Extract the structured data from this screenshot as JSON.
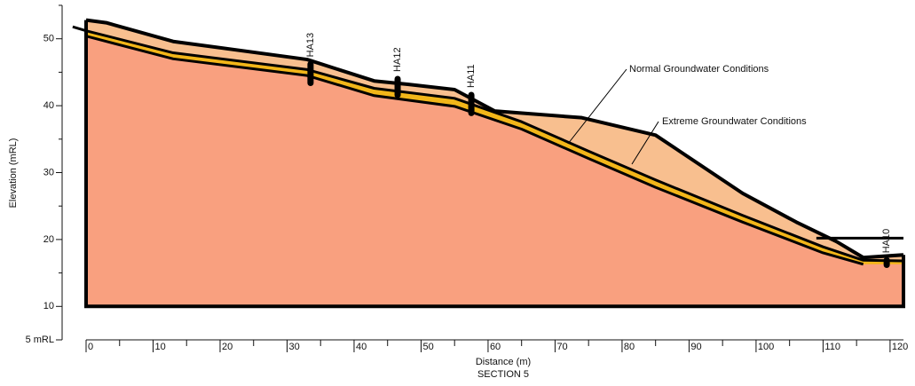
{
  "chart_data": {
    "type": "section",
    "subtitle": "SECTION 5",
    "x_label": "Distance (m)",
    "y_label": "Elevation (mRL)",
    "xlim": [
      0,
      122
    ],
    "ylim": [
      5,
      55
    ],
    "xticks": [
      0,
      10,
      20,
      30,
      40,
      50,
      60,
      70,
      80,
      90,
      100,
      110,
      120
    ],
    "yticks": [
      {
        "value": 5,
        "label": "5 mRL"
      },
      10,
      20,
      30,
      40,
      50
    ],
    "base": 10,
    "series": [
      {
        "color": "#000000",
        "x": [
          0,
          3,
          13,
          33,
          43,
          48,
          55,
          61,
          74,
          85,
          98,
          106,
          112,
          116,
          122
        ],
        "values": [
          52.8,
          52.4,
          49.6,
          46.9,
          43.7,
          43.2,
          42.4,
          39.2,
          38.2,
          35.6,
          26.9,
          22.6,
          19.7,
          17.3,
          17.7
        ]
      },
      {
        "color": "#000000",
        "x": [
          -2,
          0,
          13,
          33,
          43,
          55,
          65,
          75,
          85,
          98,
          110,
          116,
          122
        ],
        "values": [
          51.8,
          51.2,
          47.9,
          45.4,
          42.6,
          41.1,
          37.6,
          33.2,
          28.9,
          23.6,
          18.9,
          16.9,
          16.8
        ]
      },
      {
        "color": "#000000",
        "x": [
          0,
          13,
          33,
          43,
          55,
          65,
          75,
          85,
          98,
          110,
          116
        ],
        "values": [
          50.4,
          47.0,
          44.5,
          41.5,
          39.9,
          36.5,
          32.1,
          27.8,
          22.6,
          18.0,
          16.3
        ]
      },
      {
        "color": "#000000",
        "x": [
          109,
          122
        ],
        "values": [
          20.2,
          20.2
        ]
      }
    ],
    "boreholes": [
      {
        "label": "HA13",
        "x": 33.5,
        "top": 46.2,
        "bottom": 43.4
      },
      {
        "label": "HA12",
        "x": 46.5,
        "top": 44.0,
        "bottom": 41.6
      },
      {
        "label": "HA11",
        "x": 57.5,
        "top": 41.6,
        "bottom": 38.9
      },
      {
        "label": "HA10",
        "x": 119.5,
        "top": 16.9,
        "bottom": 16.2
      }
    ],
    "annotations": [
      "Normal Groundwater Conditions",
      "Extreme Groundwater Conditions"
    ]
  }
}
